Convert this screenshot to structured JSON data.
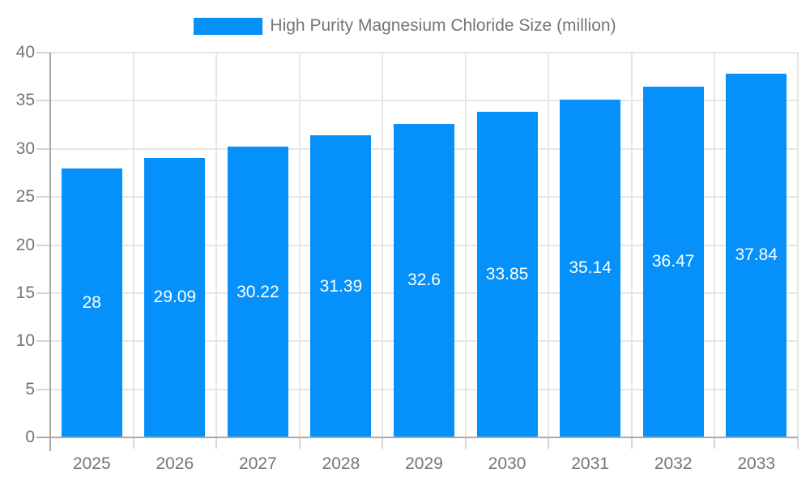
{
  "legend": {
    "label": "High Purity Magnesium Chloride Size (million)"
  },
  "chart_data": {
    "type": "bar",
    "title": "",
    "xlabel": "",
    "ylabel": "",
    "categories": [
      "2025",
      "2026",
      "2027",
      "2028",
      "2029",
      "2030",
      "2031",
      "2032",
      "2033"
    ],
    "series": [
      {
        "name": "High Purity Magnesium Chloride Size (million)",
        "values": [
          28,
          29.09,
          30.22,
          31.39,
          32.6,
          33.85,
          35.14,
          36.47,
          37.84
        ],
        "value_labels": [
          "28",
          "29.09",
          "30.22",
          "31.39",
          "32.6",
          "33.85",
          "35.14",
          "36.47",
          "37.84"
        ]
      }
    ],
    "ylim": [
      0,
      40
    ],
    "y_ticks": [
      0,
      5,
      10,
      15,
      20,
      25,
      30,
      35,
      40
    ],
    "grid": true,
    "legend_position": "top",
    "bar_label_position": "center",
    "colors": {
      "bar": "#0691fa",
      "bar_label": "#ffffff",
      "axis_text": "#757575",
      "grid_line": "#e6e6e6",
      "tick": "#d6d6d6",
      "axis_line": "#a9a9a9",
      "background": "#ffffff"
    }
  }
}
